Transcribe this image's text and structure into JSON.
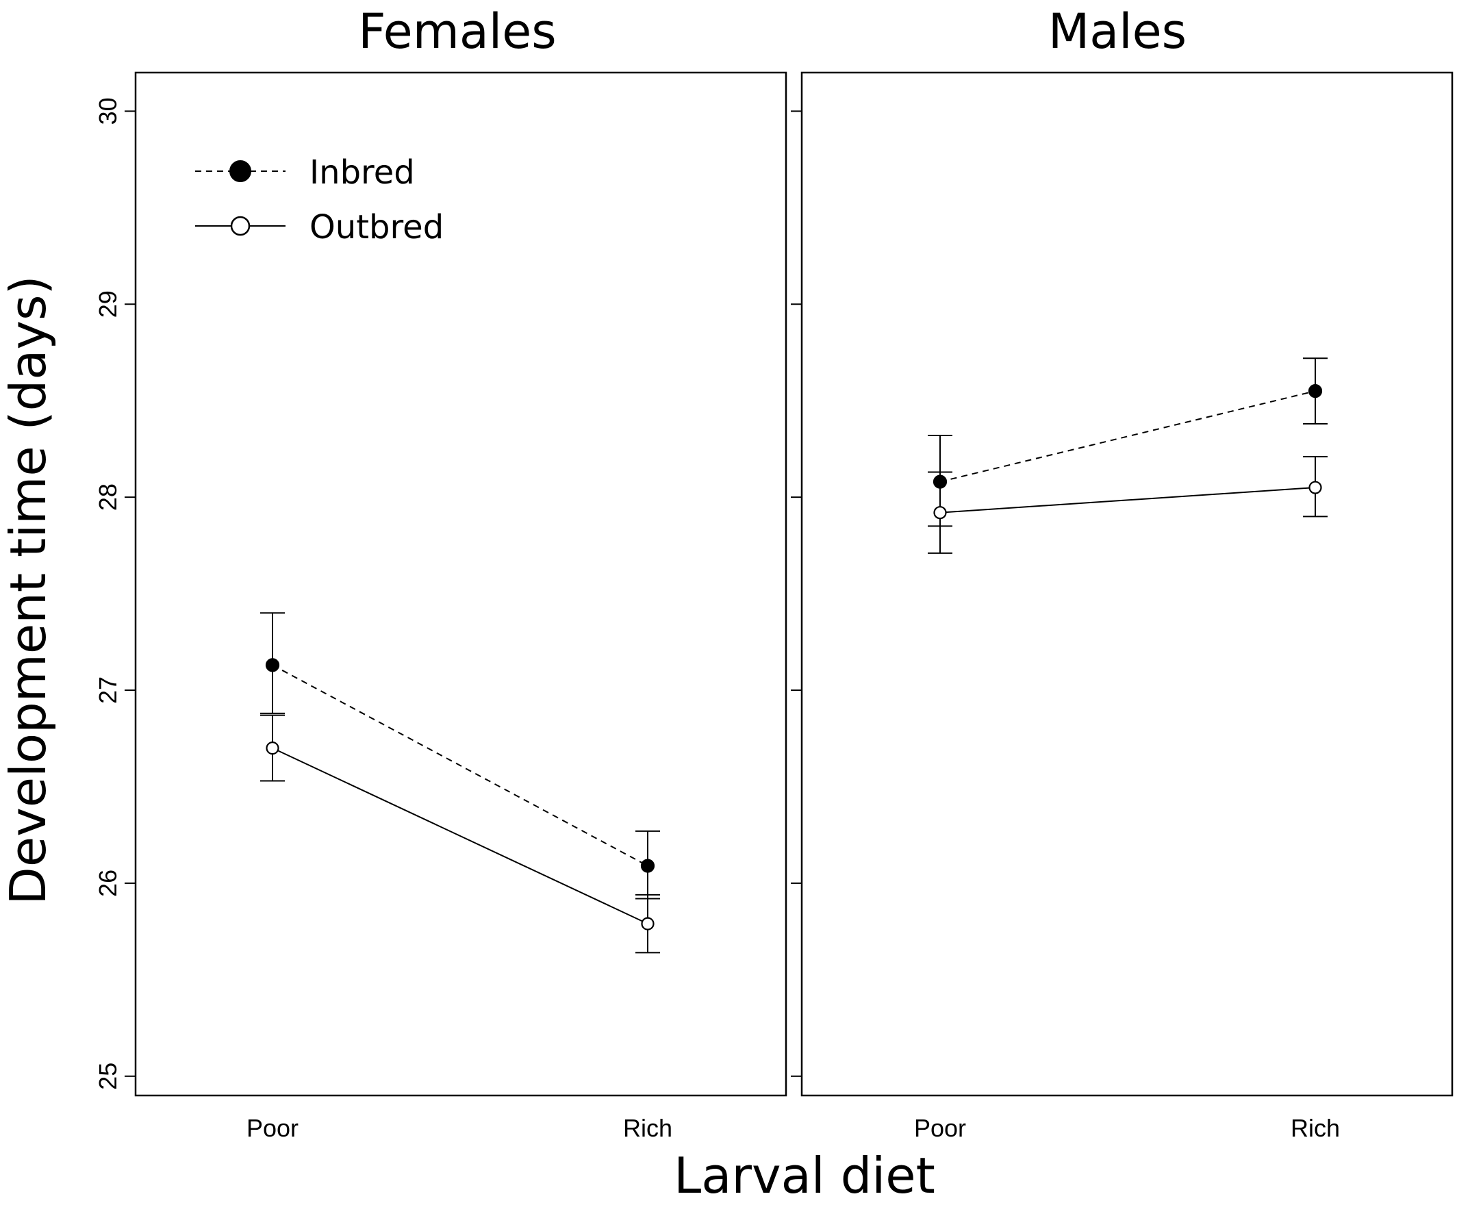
{
  "chart_data": {
    "type": "line",
    "xlabel": "Larval diet",
    "ylabel": "Development time (days)",
    "categories": [
      "Poor",
      "Rich"
    ],
    "ylim": [
      24.9,
      30.2
    ],
    "yticks": [
      25,
      26,
      27,
      28,
      29,
      30
    ],
    "grid": false,
    "legend": {
      "placement": "top-left",
      "entries": [
        {
          "name": "Inbred",
          "marker": "filled-circle",
          "line": "dashed"
        },
        {
          "name": "Outbred",
          "marker": "open-circle",
          "line": "solid"
        }
      ]
    },
    "panels": [
      {
        "title": "Females",
        "series": [
          {
            "name": "Inbred",
            "values": [
              27.13,
              26.09
            ],
            "upper": [
              27.4,
              26.27
            ],
            "lower": [
              26.88,
              25.92
            ]
          },
          {
            "name": "Outbred",
            "values": [
              26.7,
              25.79
            ],
            "upper": [
              26.87,
              25.94
            ],
            "lower": [
              26.53,
              25.64
            ]
          }
        ]
      },
      {
        "title": "Males",
        "series": [
          {
            "name": "Inbred",
            "values": [
              28.08,
              28.55
            ],
            "upper": [
              28.32,
              28.72
            ],
            "lower": [
              27.85,
              28.38
            ]
          },
          {
            "name": "Outbred",
            "values": [
              27.92,
              28.05
            ],
            "upper": [
              28.13,
              28.21
            ],
            "lower": [
              27.71,
              27.9
            ]
          }
        ]
      }
    ]
  }
}
